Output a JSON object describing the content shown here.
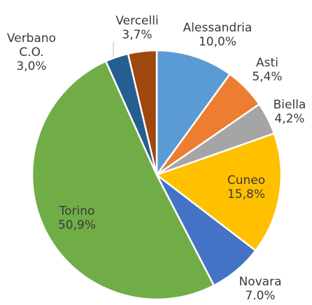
{
  "chart_data": {
    "type": "pie",
    "categories": [
      "Alessandria",
      "Asti",
      "Biella",
      "Cuneo",
      "Novara",
      "Torino",
      "Verbano C.O.",
      "Vercelli"
    ],
    "values": [
      10.0,
      5.4,
      4.2,
      15.8,
      7.0,
      50.9,
      3.0,
      3.7
    ],
    "value_labels": [
      "10,0%",
      "5,4%",
      "4,2%",
      "15,8%",
      "7.0%",
      "50,9%",
      "3,0%",
      "3,7%"
    ],
    "colors": [
      "#5b9bd5",
      "#ed7d31",
      "#a5a5a5",
      "#ffc000",
      "#4472c4",
      "#70ad47",
      "#255e91",
      "#9e480e"
    ]
  }
}
